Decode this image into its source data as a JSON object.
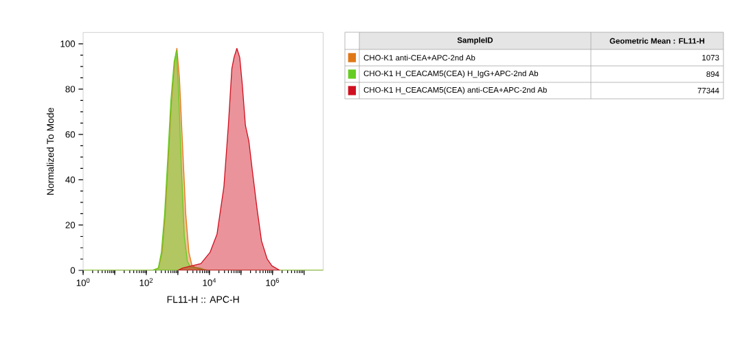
{
  "chart_data": {
    "type": "area",
    "xlabel": "FL11-H :: APC-H",
    "ylabel": "Normalized To Mode",
    "log": "x",
    "xlim": [
      1,
      40000000
    ],
    "ylim": [
      0,
      105
    ],
    "xticks": [
      {
        "value": 1,
        "label": "10$^{0}$"
      },
      {
        "value": 10,
        "label": null
      },
      {
        "value": 100,
        "label": "10$^{2}$"
      },
      {
        "value": 1000,
        "label": null
      },
      {
        "value": 10000,
        "label": "10$^{4}$"
      },
      {
        "value": 100000,
        "label": null
      },
      {
        "value": 1000000,
        "label": "10$^{6}$"
      },
      {
        "value": 10000000,
        "label": null
      }
    ],
    "yticks": [
      0,
      20,
      40,
      60,
      80,
      100
    ],
    "legend": "right",
    "annotations": [
      "SampleID",
      "Geometric Mean : FL11-H",
      "1073",
      "894",
      "77344"
    ],
    "series": [
      {
        "name": "CHO-K1 anti-CEA+APC-2nd Ab",
        "color": "#e07818",
        "x": [
          1,
          158,
          245,
          316,
          398,
          501,
          631,
          794,
          933,
          1122,
          1413,
          1778,
          2239,
          2818,
          5012,
          10000,
          40000000
        ],
        "values": [
          0,
          0,
          1,
          8,
          25,
          50,
          75,
          92,
          98,
          85,
          55,
          25,
          8,
          2,
          0.5,
          0,
          0
        ]
      },
      {
        "name": "CHO-K1 H_CEACAM5(CEA) H_IgG+APC-2nd Ab",
        "color": "#66cc22",
        "x": [
          1,
          158,
          240,
          300,
          380,
          480,
          600,
          760,
          900,
          1050,
          1300,
          1600,
          2000,
          2500,
          5000,
          8000,
          40000000
        ],
        "values": [
          0,
          0,
          1,
          8,
          25,
          50,
          75,
          92,
          97,
          80,
          45,
          15,
          4,
          1.5,
          1,
          0,
          0
        ]
      },
      {
        "name": "CHO-K1 H_CEACAM5(CEA) anti-CEA+APC-2nd Ab",
        "color": "#d01020",
        "x": [
          1000,
          1413,
          5370,
          10500,
          17400,
          28800,
          39800,
          51300,
          60300,
          74100,
          91200,
          110000,
          138000,
          178000,
          229000,
          324000,
          447000,
          676000,
          955000,
          1700000
        ],
        "values": [
          0,
          1,
          3,
          8,
          16,
          37,
          64,
          89,
          94,
          98,
          94,
          82,
          64,
          57,
          44,
          27,
          13,
          5,
          2,
          0
        ]
      }
    ]
  }
}
